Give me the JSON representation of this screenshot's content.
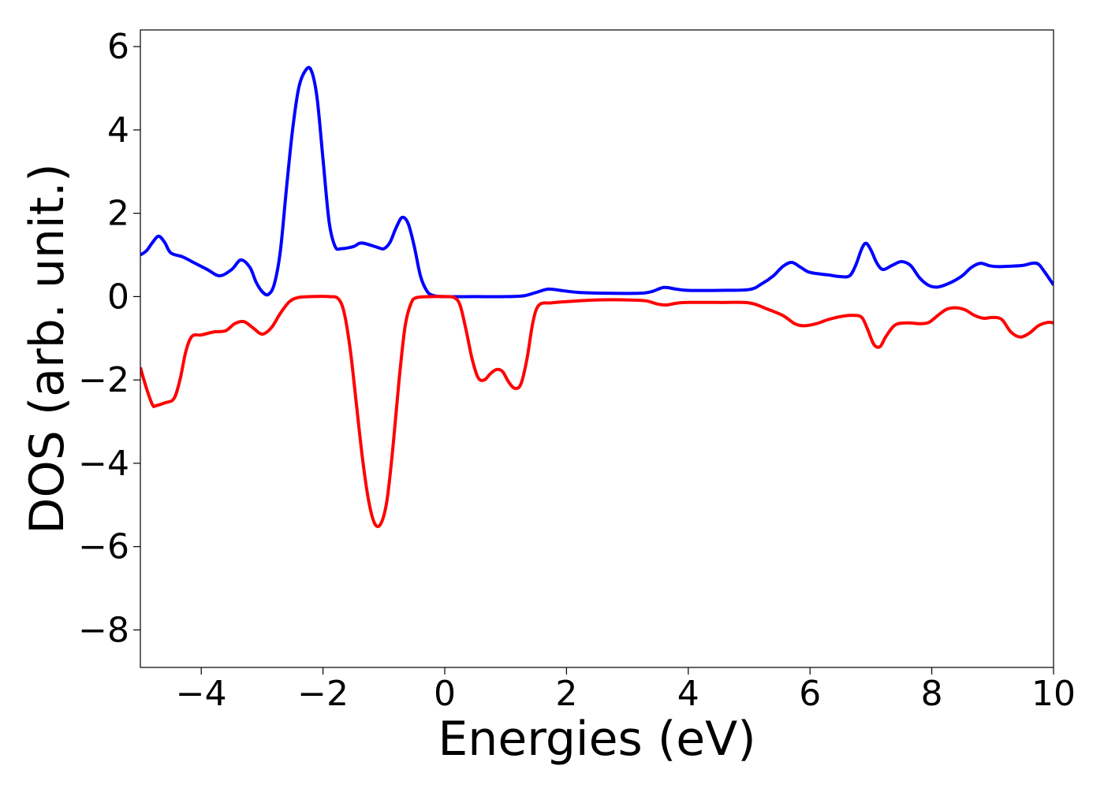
{
  "chart_data": {
    "type": "line",
    "title": "",
    "xlabel": "Energies (eV)",
    "ylabel": "DOS (arb. unit.)",
    "xlim": [
      -5,
      10
    ],
    "ylim": [
      -8.9,
      6.4
    ],
    "xticks": [
      -4,
      -2,
      0,
      2,
      4,
      6,
      8,
      10
    ],
    "yticks": [
      -8,
      -6,
      -4,
      -2,
      0,
      2,
      4,
      6
    ],
    "grid": false,
    "legend": null,
    "series": [
      {
        "color": "#0000ff",
        "points": [
          [
            -5.0,
            1.0
          ],
          [
            -4.9,
            1.1
          ],
          [
            -4.8,
            1.3
          ],
          [
            -4.7,
            1.45
          ],
          [
            -4.6,
            1.3
          ],
          [
            -4.5,
            1.05
          ],
          [
            -4.3,
            0.95
          ],
          [
            -4.1,
            0.8
          ],
          [
            -3.9,
            0.65
          ],
          [
            -3.7,
            0.5
          ],
          [
            -3.5,
            0.65
          ],
          [
            -3.35,
            0.88
          ],
          [
            -3.2,
            0.7
          ],
          [
            -3.1,
            0.35
          ],
          [
            -3.0,
            0.12
          ],
          [
            -2.9,
            0.05
          ],
          [
            -2.8,
            0.3
          ],
          [
            -2.7,
            1.1
          ],
          [
            -2.6,
            2.6
          ],
          [
            -2.5,
            4.0
          ],
          [
            -2.4,
            5.0
          ],
          [
            -2.3,
            5.4
          ],
          [
            -2.2,
            5.45
          ],
          [
            -2.1,
            4.8
          ],
          [
            -2.0,
            3.3
          ],
          [
            -1.9,
            1.8
          ],
          [
            -1.8,
            1.2
          ],
          [
            -1.7,
            1.15
          ],
          [
            -1.5,
            1.2
          ],
          [
            -1.4,
            1.28
          ],
          [
            -1.3,
            1.27
          ],
          [
            -1.1,
            1.18
          ],
          [
            -1.0,
            1.15
          ],
          [
            -0.9,
            1.3
          ],
          [
            -0.8,
            1.65
          ],
          [
            -0.7,
            1.9
          ],
          [
            -0.6,
            1.75
          ],
          [
            -0.5,
            1.2
          ],
          [
            -0.4,
            0.5
          ],
          [
            -0.3,
            0.15
          ],
          [
            -0.2,
            0.03
          ],
          [
            0.0,
            0.0
          ],
          [
            0.5,
            0.0
          ],
          [
            1.0,
            0.0
          ],
          [
            1.3,
            0.02
          ],
          [
            1.5,
            0.1
          ],
          [
            1.7,
            0.18
          ],
          [
            1.9,
            0.15
          ],
          [
            2.2,
            0.1
          ],
          [
            2.7,
            0.08
          ],
          [
            3.2,
            0.08
          ],
          [
            3.4,
            0.12
          ],
          [
            3.6,
            0.22
          ],
          [
            3.8,
            0.18
          ],
          [
            4.0,
            0.15
          ],
          [
            4.5,
            0.15
          ],
          [
            5.0,
            0.17
          ],
          [
            5.2,
            0.3
          ],
          [
            5.4,
            0.5
          ],
          [
            5.55,
            0.72
          ],
          [
            5.7,
            0.82
          ],
          [
            5.85,
            0.7
          ],
          [
            6.0,
            0.58
          ],
          [
            6.3,
            0.52
          ],
          [
            6.5,
            0.48
          ],
          [
            6.65,
            0.5
          ],
          [
            6.75,
            0.75
          ],
          [
            6.85,
            1.15
          ],
          [
            6.92,
            1.28
          ],
          [
            7.0,
            1.12
          ],
          [
            7.1,
            0.8
          ],
          [
            7.2,
            0.65
          ],
          [
            7.35,
            0.75
          ],
          [
            7.5,
            0.84
          ],
          [
            7.65,
            0.75
          ],
          [
            7.8,
            0.45
          ],
          [
            7.95,
            0.27
          ],
          [
            8.1,
            0.23
          ],
          [
            8.3,
            0.33
          ],
          [
            8.5,
            0.5
          ],
          [
            8.65,
            0.7
          ],
          [
            8.8,
            0.8
          ],
          [
            8.95,
            0.74
          ],
          [
            9.1,
            0.72
          ],
          [
            9.3,
            0.73
          ],
          [
            9.5,
            0.75
          ],
          [
            9.65,
            0.8
          ],
          [
            9.75,
            0.78
          ],
          [
            9.85,
            0.6
          ],
          [
            10.0,
            0.28
          ]
        ]
      },
      {
        "color": "#ff0000",
        "points": [
          [
            -5.0,
            -1.7
          ],
          [
            -4.9,
            -2.2
          ],
          [
            -4.8,
            -2.6
          ],
          [
            -4.75,
            -2.62
          ],
          [
            -4.6,
            -2.55
          ],
          [
            -4.45,
            -2.45
          ],
          [
            -4.35,
            -2.0
          ],
          [
            -4.25,
            -1.3
          ],
          [
            -4.15,
            -0.95
          ],
          [
            -4.0,
            -0.92
          ],
          [
            -3.8,
            -0.85
          ],
          [
            -3.6,
            -0.82
          ],
          [
            -3.45,
            -0.65
          ],
          [
            -3.3,
            -0.6
          ],
          [
            -3.15,
            -0.75
          ],
          [
            -3.0,
            -0.9
          ],
          [
            -2.85,
            -0.75
          ],
          [
            -2.7,
            -0.4
          ],
          [
            -2.55,
            -0.12
          ],
          [
            -2.4,
            -0.02
          ],
          [
            -2.2,
            0.0
          ],
          [
            -1.9,
            0.0
          ],
          [
            -1.75,
            -0.05
          ],
          [
            -1.65,
            -0.4
          ],
          [
            -1.55,
            -1.3
          ],
          [
            -1.45,
            -2.6
          ],
          [
            -1.35,
            -3.9
          ],
          [
            -1.25,
            -4.9
          ],
          [
            -1.15,
            -5.45
          ],
          [
            -1.05,
            -5.45
          ],
          [
            -0.95,
            -4.9
          ],
          [
            -0.85,
            -3.6
          ],
          [
            -0.75,
            -2.0
          ],
          [
            -0.65,
            -0.7
          ],
          [
            -0.55,
            -0.15
          ],
          [
            -0.45,
            -0.02
          ],
          [
            -0.2,
            0.0
          ],
          [
            0.0,
            0.0
          ],
          [
            0.15,
            -0.02
          ],
          [
            0.25,
            -0.2
          ],
          [
            0.35,
            -0.8
          ],
          [
            0.45,
            -1.5
          ],
          [
            0.55,
            -1.95
          ],
          [
            0.65,
            -2.0
          ],
          [
            0.75,
            -1.85
          ],
          [
            0.85,
            -1.75
          ],
          [
            0.95,
            -1.8
          ],
          [
            1.05,
            -2.05
          ],
          [
            1.15,
            -2.2
          ],
          [
            1.25,
            -2.1
          ],
          [
            1.35,
            -1.5
          ],
          [
            1.45,
            -0.6
          ],
          [
            1.55,
            -0.2
          ],
          [
            1.75,
            -0.15
          ],
          [
            2.0,
            -0.12
          ],
          [
            2.5,
            -0.08
          ],
          [
            3.0,
            -0.08
          ],
          [
            3.3,
            -0.1
          ],
          [
            3.5,
            -0.18
          ],
          [
            3.65,
            -0.2
          ],
          [
            3.8,
            -0.16
          ],
          [
            4.0,
            -0.14
          ],
          [
            4.5,
            -0.14
          ],
          [
            5.0,
            -0.15
          ],
          [
            5.3,
            -0.3
          ],
          [
            5.55,
            -0.45
          ],
          [
            5.75,
            -0.65
          ],
          [
            5.9,
            -0.7
          ],
          [
            6.1,
            -0.65
          ],
          [
            6.3,
            -0.55
          ],
          [
            6.5,
            -0.48
          ],
          [
            6.7,
            -0.45
          ],
          [
            6.85,
            -0.5
          ],
          [
            6.95,
            -0.8
          ],
          [
            7.05,
            -1.15
          ],
          [
            7.15,
            -1.2
          ],
          [
            7.25,
            -0.95
          ],
          [
            7.4,
            -0.68
          ],
          [
            7.6,
            -0.63
          ],
          [
            7.8,
            -0.65
          ],
          [
            7.95,
            -0.62
          ],
          [
            8.1,
            -0.45
          ],
          [
            8.25,
            -0.3
          ],
          [
            8.4,
            -0.27
          ],
          [
            8.55,
            -0.32
          ],
          [
            8.7,
            -0.45
          ],
          [
            8.85,
            -0.52
          ],
          [
            9.0,
            -0.5
          ],
          [
            9.15,
            -0.55
          ],
          [
            9.3,
            -0.85
          ],
          [
            9.45,
            -0.97
          ],
          [
            9.6,
            -0.88
          ],
          [
            9.75,
            -0.7
          ],
          [
            9.9,
            -0.62
          ],
          [
            10.0,
            -0.63
          ]
        ]
      }
    ]
  }
}
